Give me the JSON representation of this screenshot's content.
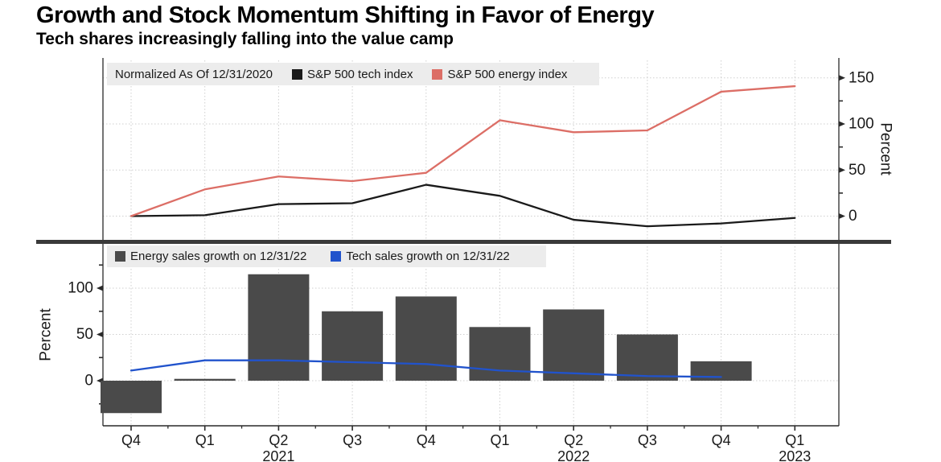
{
  "title": "Growth and Stock Momentum Shifting in Favor of Energy",
  "subtitle": "Tech shares increasingly falling into the value camp",
  "colors": {
    "tech_index_line": "#1a1a1a",
    "energy_index_line": "#dc6e66",
    "energy_sales_bar": "#4a4a4a",
    "tech_sales_line": "#2153cc",
    "legend_background": "#ececec",
    "gridline": "#cfcfcf",
    "axis": "#2a2a2a",
    "separator": "#3a3a3a",
    "text": "#1a1a1a"
  },
  "x_axis": {
    "labels": [
      "Q4",
      "Q1",
      "Q2",
      "Q3",
      "Q4",
      "Q1",
      "Q2",
      "Q3",
      "Q4",
      "Q1"
    ],
    "years": [
      {
        "text": "2021",
        "index": 2
      },
      {
        "text": "2022",
        "index": 6
      },
      {
        "text": "2023",
        "index": 9
      }
    ]
  },
  "chart_data": [
    {
      "id": "stock-index-momentum",
      "type": "line",
      "title": "Normalized As Of 12/31/2020",
      "categories": [
        "Q4 2020",
        "Q1 2021",
        "Q2 2021",
        "Q3 2021",
        "Q4 2021",
        "Q1 2022",
        "Q2 2022",
        "Q3 2022",
        "Q4 2022",
        "Q1 2023"
      ],
      "series": [
        {
          "name": "S&P 500 tech index",
          "color": "#1a1a1a",
          "values": [
            0,
            1,
            13,
            14,
            34,
            22,
            -4,
            -11,
            -8,
            -2
          ]
        },
        {
          "name": "S&P 500 energy index",
          "color": "#dc6e66",
          "values": [
            0,
            29,
            43,
            38,
            47,
            104,
            91,
            93,
            135,
            141
          ]
        }
      ],
      "ylabel": "Percent",
      "yticks": [
        0,
        50,
        100,
        150
      ],
      "yticks_minor": [
        25,
        75,
        125
      ],
      "ylim": [
        -27,
        169
      ],
      "axis_side": "right",
      "grid": true,
      "legend_position": "top-left"
    },
    {
      "id": "sales-growth",
      "type": "bar+line",
      "categories": [
        "Q4 2020",
        "Q1 2021",
        "Q2 2021",
        "Q3 2021",
        "Q4 2021",
        "Q1 2022",
        "Q2 2022",
        "Q3 2022",
        "Q4 2022",
        "Q1 2023"
      ],
      "series": [
        {
          "name": "Energy sales growth on 12/31/22",
          "type": "bar",
          "color": "#4a4a4a",
          "values": [
            -35,
            2,
            115,
            75,
            91,
            58,
            77,
            50,
            21,
            null
          ]
        },
        {
          "name": "Tech sales growth on 12/31/22",
          "type": "line",
          "color": "#2153cc",
          "values": [
            11,
            22,
            22,
            20,
            18,
            11,
            8,
            5,
            4,
            null
          ]
        }
      ],
      "ylabel": "Percent",
      "yticks": [
        0,
        50,
        100
      ],
      "yticks_minor": [
        -25,
        25,
        75,
        125
      ],
      "ylim": [
        -49,
        146
      ],
      "axis_side": "left",
      "grid": true,
      "legend_position": "top-left"
    }
  ]
}
